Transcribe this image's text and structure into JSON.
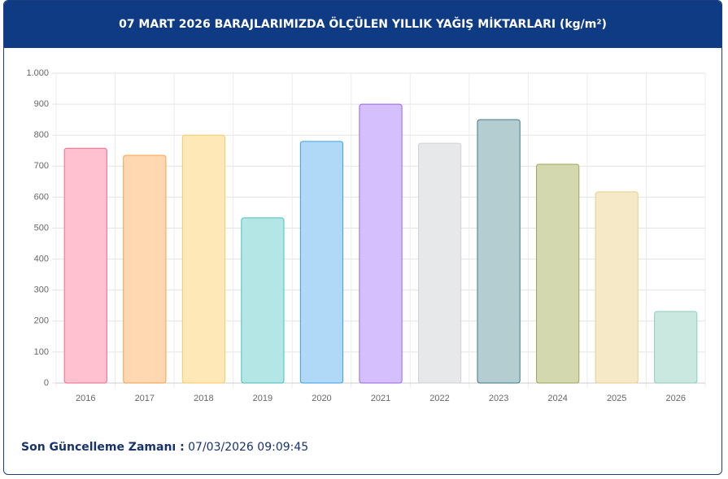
{
  "chart_data": {
    "type": "bar",
    "title": "07 MART 2026 BARAJLARIMIZDA ÖLÇÜLEN YILLIK YAĞIŞ MİKTARLARI (kg/m²)",
    "categories": [
      "2016",
      "2017",
      "2018",
      "2019",
      "2020",
      "2021",
      "2022",
      "2023",
      "2024",
      "2025",
      "2026"
    ],
    "values": [
      758,
      735,
      800,
      533,
      780,
      900,
      774,
      850,
      706,
      617,
      231
    ],
    "colors": [
      "#ffc0cf",
      "#ffd7b0",
      "#ffe8b7",
      "#b4e6e6",
      "#b0d9f7",
      "#d5c0fd",
      "#e7e8ea",
      "#b3cdd1",
      "#d3d8af",
      "#f6e9c8",
      "#cae8df"
    ],
    "border_colors": [
      "#f06a8c",
      "#f5a04a",
      "#f8cc5c",
      "#4cbfbf",
      "#3ba0e3",
      "#9b65f5",
      "#cfd1d5",
      "#3f7a82",
      "#9ea55a",
      "#e8cf8a",
      "#8dcdb9"
    ],
    "ylim": [
      0,
      1000
    ],
    "yticks": [
      0,
      100,
      200,
      300,
      400,
      500,
      600,
      700,
      800,
      900,
      {
        "value": 1000,
        "label": "1.000"
      }
    ],
    "grid": true
  },
  "footer": {
    "label": "Son Güncelleme Zamanı :",
    "value": "07/03/2026 09:09:45"
  }
}
